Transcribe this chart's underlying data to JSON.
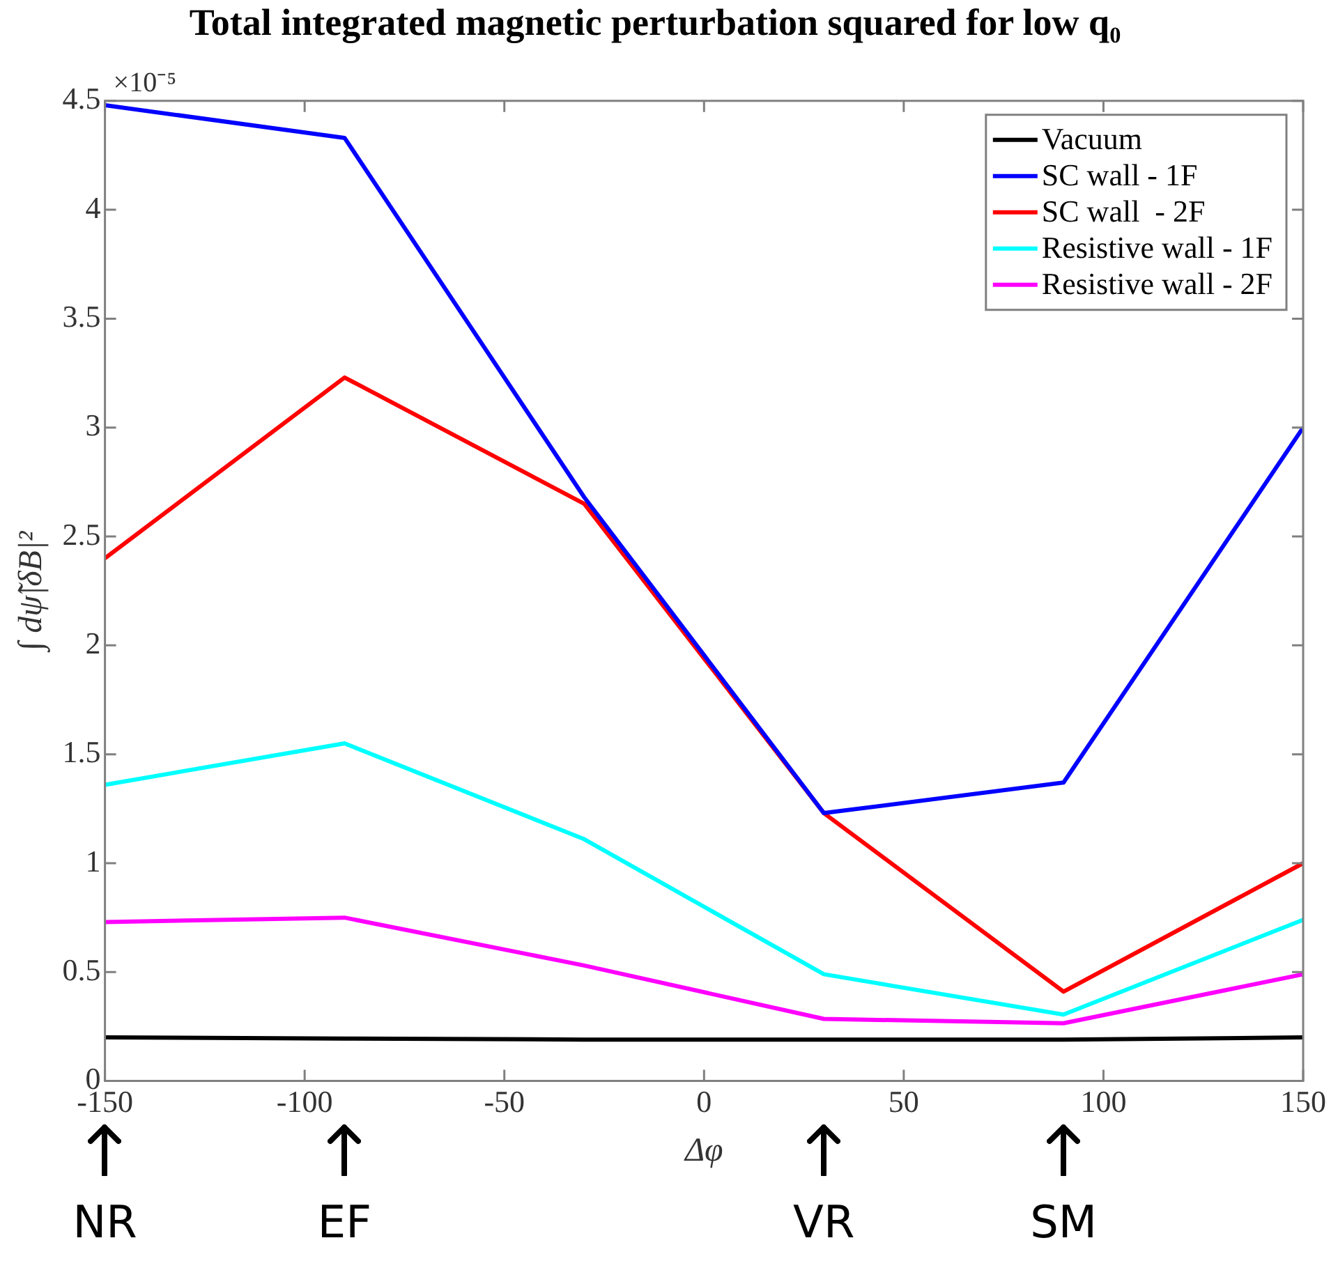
{
  "chart_data": {
    "type": "line",
    "title": "Total integrated magnetic perturbation squared for low q₀",
    "xlabel": "Δφ",
    "ylabel": "∫ dψ̃|δB|²",
    "x": [
      -150,
      -90,
      -30,
      30,
      90,
      150
    ],
    "series": [
      {
        "name": "Vacuum",
        "color": "#000000",
        "values": [
          0.2,
          0.195,
          0.19,
          0.19,
          0.19,
          0.2
        ]
      },
      {
        "name": "SC wall - 1F",
        "color": "#0000ff",
        "values": [
          4.48,
          4.33,
          2.68,
          1.23,
          1.37,
          3.0
        ]
      },
      {
        "name": "SC wall  - 2F",
        "color": "#ff0000",
        "values": [
          2.4,
          3.23,
          2.65,
          1.23,
          0.41,
          1.0
        ]
      },
      {
        "name": "Resistive wall - 1F",
        "color": "#00ffff",
        "values": [
          1.36,
          1.55,
          1.11,
          0.49,
          0.305,
          0.74
        ]
      },
      {
        "name": "Resistive wall - 2F",
        "color": "#ff00ff",
        "values": [
          0.73,
          0.75,
          0.53,
          0.285,
          0.265,
          0.49
        ]
      }
    ],
    "xlim": [
      -150,
      150
    ],
    "xticks": [
      -150,
      -100,
      -50,
      0,
      50,
      100,
      150
    ],
    "ylim": [
      0,
      4.5
    ],
    "yticks": [
      0,
      0.5,
      1,
      1.5,
      2,
      2.5,
      3,
      3.5,
      4,
      4.5
    ],
    "grid": false,
    "legend": "top right",
    "marker": "none",
    "line_style": "solid",
    "annotations": [
      "×10⁻⁵",
      {
        "text": "NR",
        "x": -150
      },
      {
        "text": "EF",
        "x": -90
      },
      {
        "text": "VR",
        "x": 30
      },
      {
        "text": "SM",
        "x": 90
      }
    ]
  }
}
